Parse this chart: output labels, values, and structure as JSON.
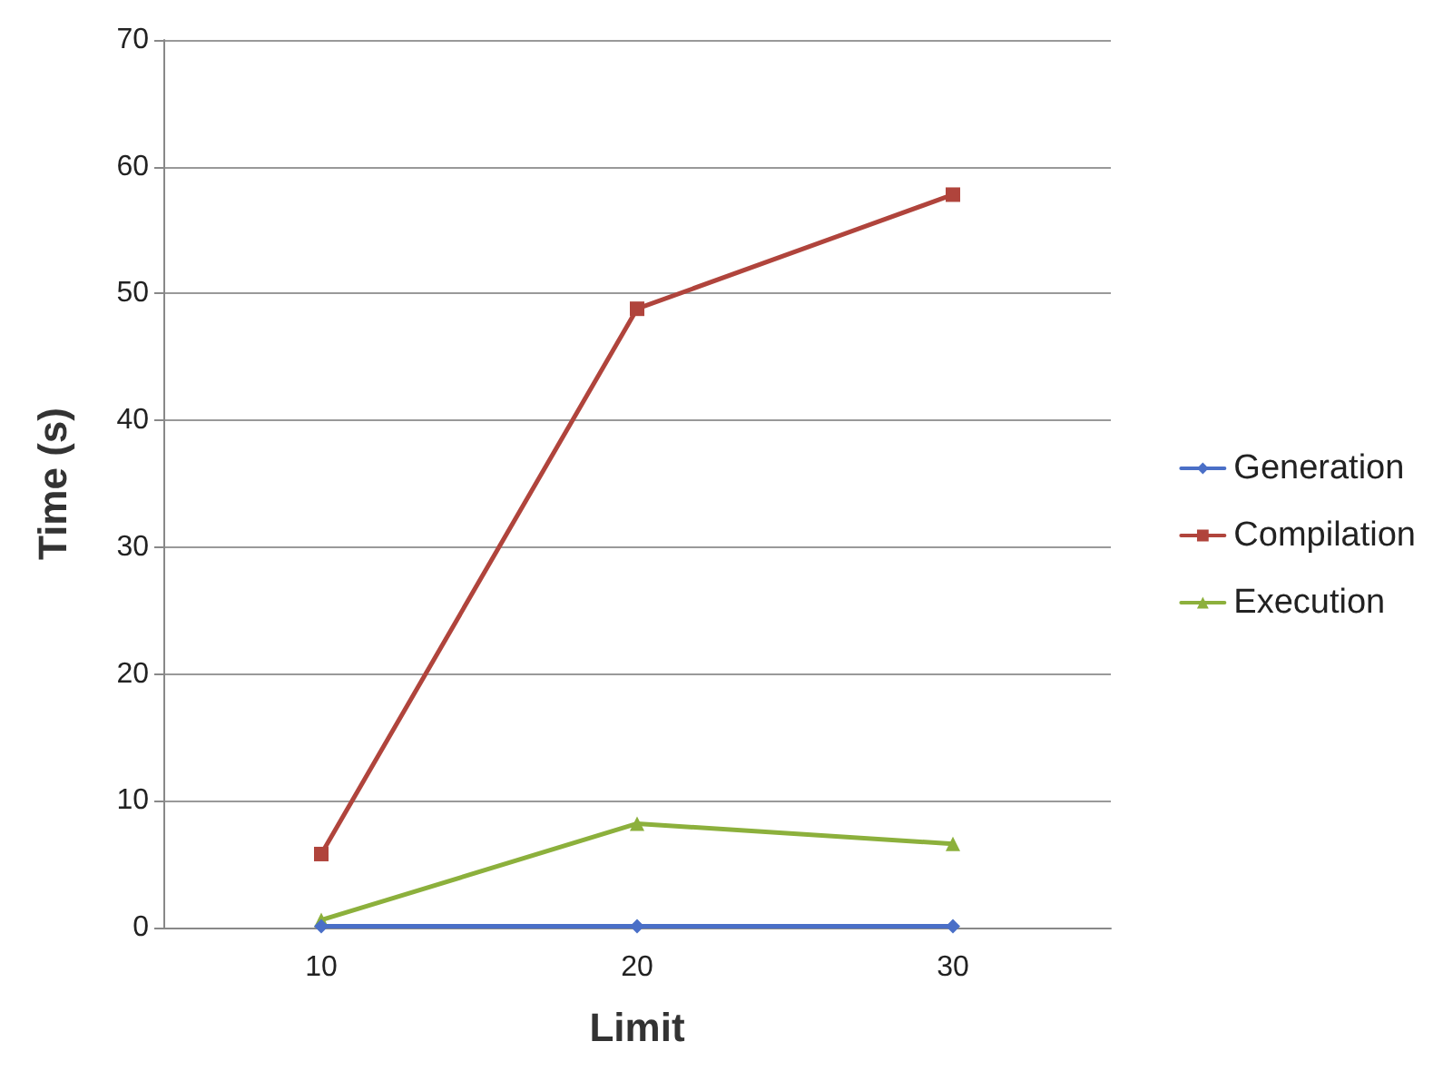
{
  "chart_data": {
    "type": "line",
    "xlabel": "Limit",
    "ylabel": "Time (s)",
    "categories": [
      "10",
      "20",
      "30"
    ],
    "series": [
      {
        "name": "Generation",
        "color": "#4a6fc7",
        "marker": "diamond",
        "values": [
          0.1,
          0.1,
          0.1
        ]
      },
      {
        "name": "Compilation",
        "color": "#b0443c",
        "marker": "square",
        "values": [
          5.8,
          48.8,
          57.8
        ]
      },
      {
        "name": "Execution",
        "color": "#8cb03c",
        "marker": "triangle",
        "values": [
          0.6,
          8.2,
          6.6
        ]
      }
    ],
    "ylim": [
      0,
      70
    ],
    "yticks": [
      0,
      10,
      20,
      30,
      40,
      50,
      60,
      70
    ],
    "grid": "y",
    "legend": "right"
  }
}
